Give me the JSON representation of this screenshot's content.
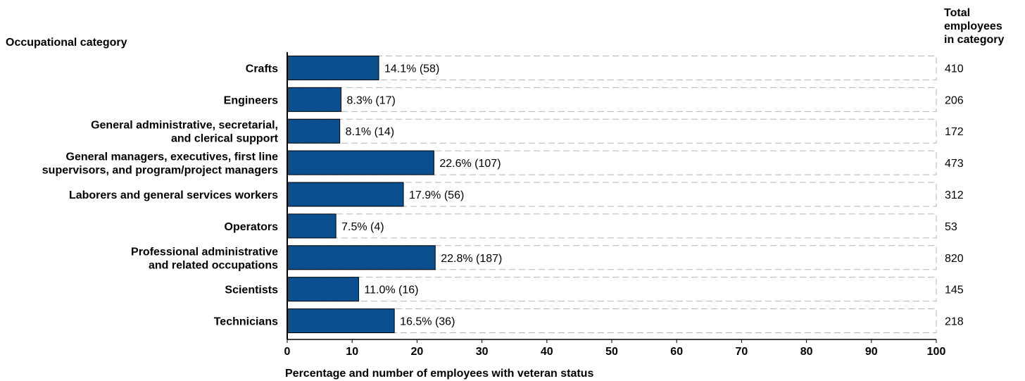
{
  "chart_data": {
    "type": "bar",
    "orientation": "horizontal",
    "category_axis_title": "Occupational category",
    "total_column_title": [
      "Total",
      "employees",
      "in category"
    ],
    "xlabel": "Percentage and number of employees with veteran status",
    "xlim": [
      0,
      100
    ],
    "xticks": [
      0,
      10,
      20,
      30,
      40,
      50,
      60,
      70,
      80,
      90,
      100
    ],
    "bar_color": "#0b4f8f",
    "rows": [
      {
        "label_lines": [
          "Crafts"
        ],
        "value": 14.1,
        "value_label": "14.1% (58)",
        "total": "410"
      },
      {
        "label_lines": [
          "Engineers"
        ],
        "value": 8.3,
        "value_label": "8.3% (17)",
        "total": "206"
      },
      {
        "label_lines": [
          "General administrative, secretarial,",
          "and clerical support"
        ],
        "value": 8.1,
        "value_label": "8.1% (14)",
        "total": "172"
      },
      {
        "label_lines": [
          "General managers, executives, first line",
          "supervisors, and program/project managers"
        ],
        "value": 22.6,
        "value_label": "22.6% (107)",
        "total": "473"
      },
      {
        "label_lines": [
          "Laborers and general services workers"
        ],
        "value": 17.9,
        "value_label": "17.9% (56)",
        "total": "312"
      },
      {
        "label_lines": [
          "Operators"
        ],
        "value": 7.5,
        "value_label": "7.5% (4)",
        "total": "53"
      },
      {
        "label_lines": [
          "Professional administrative",
          "and related occupations"
        ],
        "value": 22.8,
        "value_label": "22.8% (187)",
        "total": "820"
      },
      {
        "label_lines": [
          "Scientists"
        ],
        "value": 11.0,
        "value_label": "11.0% (16)",
        "total": "145"
      },
      {
        "label_lines": [
          "Technicians"
        ],
        "value": 16.5,
        "value_label": "16.5% (36)",
        "total": "218"
      }
    ]
  }
}
